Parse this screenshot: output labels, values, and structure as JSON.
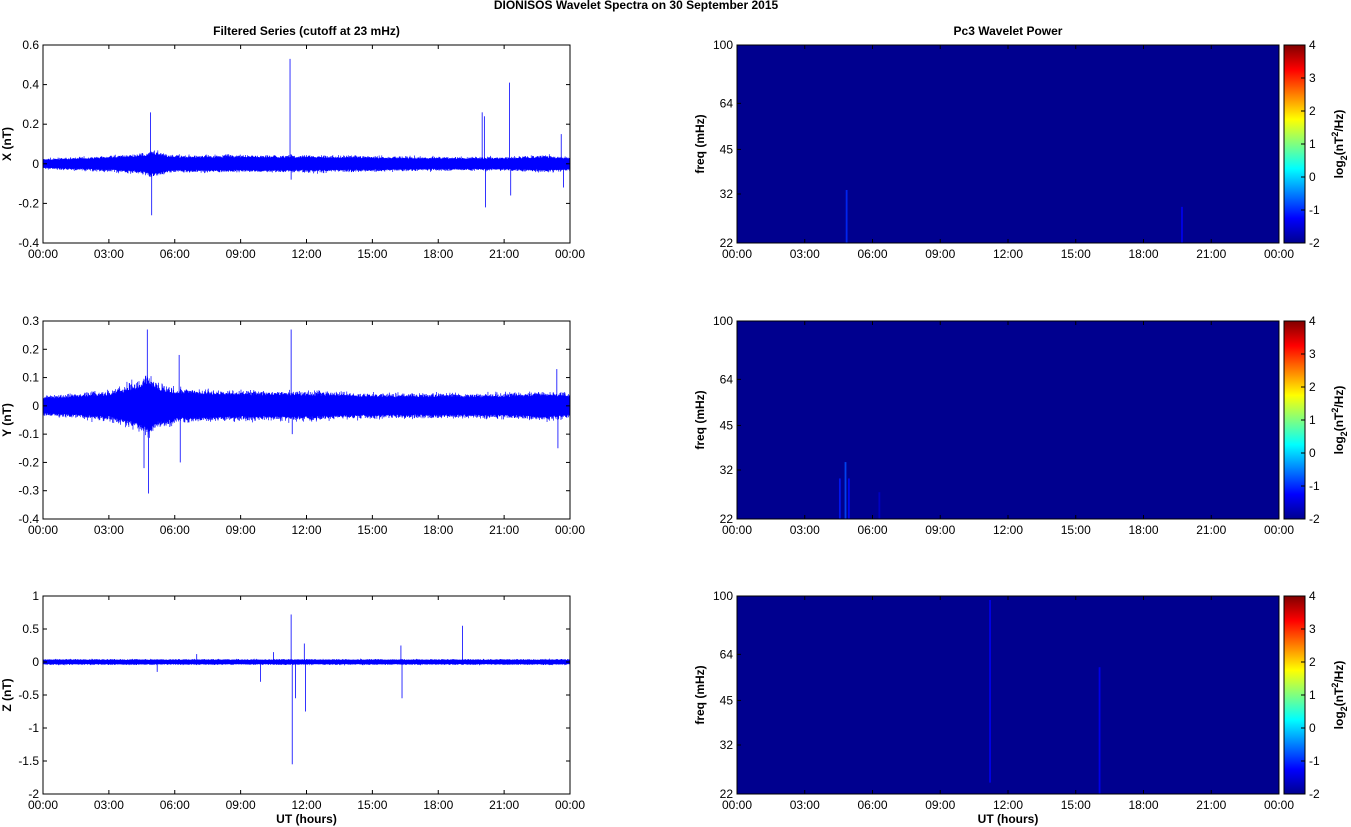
{
  "figure_title": "DIONISOS Wavelet Spectra on 30 September 2015",
  "colors": {
    "trace": "#0000ff",
    "spectrum_background": "#00008f"
  },
  "chart_data": [
    {
      "type": "line",
      "title": "Filtered Series (cutoff at 23 mHz)",
      "xlabel": "",
      "ylabel": "X (nT)",
      "x_tick_labels": [
        "00:00",
        "03:00",
        "06:00",
        "09:00",
        "12:00",
        "15:00",
        "18:00",
        "21:00",
        "00:00"
      ],
      "xlim_hours": [
        0,
        24
      ],
      "ylim": [
        -0.4,
        0.6
      ],
      "y_ticks": [
        -0.4,
        -0.2,
        0,
        0.2,
        0.4,
        0.6
      ],
      "y_tick_labels": [
        "-0.4",
        "-0.2",
        "0",
        "0.2",
        "0.4",
        "0.6"
      ],
      "series": [
        {
          "noise_envelope": {
            "x": [
              0,
              3,
              4.6,
              5,
              5.5,
              6,
              9,
              11,
              12,
              15,
              18,
              21,
              23,
              24
            ],
            "amp": [
              0.03,
              0.045,
              0.06,
              0.08,
              0.06,
              0.05,
              0.05,
              0.05,
              0.05,
              0.045,
              0.04,
              0.04,
              0.05,
              0.04
            ]
          },
          "spikes": [
            {
              "x": 4.9,
              "y": 0.26
            },
            {
              "x": 4.95,
              "y": -0.26
            },
            {
              "x": 11.25,
              "y": 0.53
            },
            {
              "x": 11.3,
              "y": -0.08
            },
            {
              "x": 20.0,
              "y": 0.26
            },
            {
              "x": 20.1,
              "y": 0.24
            },
            {
              "x": 20.15,
              "y": -0.22
            },
            {
              "x": 21.25,
              "y": 0.41
            },
            {
              "x": 21.3,
              "y": -0.16
            },
            {
              "x": 23.6,
              "y": 0.15
            },
            {
              "x": 23.7,
              "y": -0.12
            }
          ]
        }
      ]
    },
    {
      "type": "heatmap",
      "title": "Pc3 Wavelet Power",
      "xlabel": "",
      "ylabel": "freq (mHz)",
      "x_tick_labels": [
        "00:00",
        "03:00",
        "06:00",
        "09:00",
        "12:00",
        "15:00",
        "18:00",
        "21:00",
        "00:00"
      ],
      "xlim_hours": [
        0,
        24
      ],
      "ylim_mhz": [
        22,
        100
      ],
      "log_frequency_axis": true,
      "y_ticks": [
        22,
        32,
        45,
        64,
        100
      ],
      "y_tick_labels": [
        "22",
        "32",
        "45",
        "64",
        "100"
      ],
      "colorbar": {
        "ticks": [
          -2,
          -1,
          0,
          1,
          2,
          3,
          4
        ],
        "tick_labels": [
          "-2",
          "-1",
          "0",
          "1",
          "2",
          "3",
          "4"
        ],
        "label_main": "log",
        "label_sub": "2",
        "label_rest": "(nT",
        "label_sup": "2",
        "label_end": "/Hz)"
      },
      "streaks": [
        {
          "x": 4.85,
          "f_min": 22,
          "f_max": 33,
          "level": -1.0
        },
        {
          "x": 19.7,
          "f_min": 22,
          "f_max": 29,
          "level": -1.3
        }
      ]
    },
    {
      "type": "line",
      "title": "",
      "xlabel": "",
      "ylabel": "Y (nT)",
      "x_tick_labels": [
        "00:00",
        "03:00",
        "06:00",
        "09:00",
        "12:00",
        "15:00",
        "18:00",
        "21:00",
        "00:00"
      ],
      "xlim_hours": [
        0,
        24
      ],
      "ylim": [
        -0.4,
        0.3
      ],
      "y_ticks": [
        -0.4,
        -0.3,
        -0.2,
        -0.1,
        0,
        0.1,
        0.2,
        0.3
      ],
      "y_tick_labels": [
        "-0.4",
        "-0.3",
        "-0.2",
        "-0.1",
        "0",
        "0.1",
        "0.2",
        "0.3"
      ],
      "series": [
        {
          "noise_envelope": {
            "x": [
              0,
              3,
              4.4,
              4.8,
              5.2,
              6,
              9,
              11,
              12,
              15,
              18,
              21,
              23,
              24
            ],
            "amp": [
              0.04,
              0.06,
              0.1,
              0.13,
              0.09,
              0.07,
              0.06,
              0.06,
              0.06,
              0.05,
              0.05,
              0.05,
              0.06,
              0.05
            ]
          },
          "spikes": [
            {
              "x": 4.75,
              "y": 0.27
            },
            {
              "x": 4.8,
              "y": -0.31
            },
            {
              "x": 4.6,
              "y": -0.22
            },
            {
              "x": 6.2,
              "y": 0.18
            },
            {
              "x": 6.25,
              "y": -0.2
            },
            {
              "x": 11.3,
              "y": 0.27
            },
            {
              "x": 11.35,
              "y": -0.1
            },
            {
              "x": 23.4,
              "y": 0.13
            },
            {
              "x": 23.45,
              "y": -0.15
            }
          ]
        }
      ]
    },
    {
      "type": "heatmap",
      "title": "",
      "xlabel": "",
      "ylabel": "freq (mHz)",
      "x_tick_labels": [
        "00:00",
        "03:00",
        "06:00",
        "09:00",
        "12:00",
        "15:00",
        "18:00",
        "21:00",
        "00:00"
      ],
      "xlim_hours": [
        0,
        24
      ],
      "ylim_mhz": [
        22,
        100
      ],
      "log_frequency_axis": true,
      "y_ticks": [
        22,
        32,
        45,
        64,
        100
      ],
      "y_tick_labels": [
        "22",
        "32",
        "45",
        "64",
        "100"
      ],
      "colorbar": {
        "ticks": [
          -2,
          -1,
          0,
          1,
          2,
          3,
          4
        ],
        "tick_labels": [
          "-2",
          "-1",
          "0",
          "1",
          "2",
          "3",
          "4"
        ],
        "label_main": "log",
        "label_sub": "2",
        "label_rest": "(nT",
        "label_sup": "2",
        "label_end": "/Hz)"
      },
      "streaks": [
        {
          "x": 4.55,
          "f_min": 22,
          "f_max": 30,
          "level": -1.1
        },
        {
          "x": 4.8,
          "f_min": 22,
          "f_max": 34,
          "level": -0.8
        },
        {
          "x": 4.95,
          "f_min": 22,
          "f_max": 30,
          "level": -1.2
        },
        {
          "x": 6.3,
          "f_min": 22,
          "f_max": 27,
          "level": -1.6
        }
      ]
    },
    {
      "type": "line",
      "title": "",
      "xlabel": "UT (hours)",
      "ylabel": "Z (nT)",
      "x_tick_labels": [
        "00:00",
        "03:00",
        "06:00",
        "09:00",
        "12:00",
        "15:00",
        "18:00",
        "21:00",
        "00:00"
      ],
      "xlim_hours": [
        0,
        24
      ],
      "ylim": [
        -2,
        1
      ],
      "y_ticks": [
        -2,
        -1.5,
        -1,
        -0.5,
        0,
        0.5,
        1
      ],
      "y_tick_labels": [
        "-2",
        "-1.5",
        "-1",
        "-0.5",
        "0",
        "0.5",
        "1"
      ],
      "series": [
        {
          "noise_envelope": {
            "x": [
              0,
              6,
              12,
              18,
              24
            ],
            "amp": [
              0.05,
              0.05,
              0.05,
              0.05,
              0.05
            ]
          },
          "spikes": [
            {
              "x": 5.2,
              "y": -0.15
            },
            {
              "x": 7.0,
              "y": 0.12
            },
            {
              "x": 9.9,
              "y": -0.3
            },
            {
              "x": 10.5,
              "y": 0.15
            },
            {
              "x": 11.3,
              "y": 0.72
            },
            {
              "x": 11.35,
              "y": -1.55
            },
            {
              "x": 11.5,
              "y": -0.55
            },
            {
              "x": 11.9,
              "y": 0.28
            },
            {
              "x": 11.95,
              "y": -0.75
            },
            {
              "x": 16.3,
              "y": 0.25
            },
            {
              "x": 16.35,
              "y": -0.55
            },
            {
              "x": 19.1,
              "y": 0.55
            }
          ]
        }
      ]
    },
    {
      "type": "heatmap",
      "title": "",
      "xlabel": "UT (hours)",
      "ylabel": "freq (mHz)",
      "x_tick_labels": [
        "00:00",
        "03:00",
        "06:00",
        "09:00",
        "12:00",
        "15:00",
        "18:00",
        "21:00",
        "00:00"
      ],
      "xlim_hours": [
        0,
        24
      ],
      "ylim_mhz": [
        22,
        100
      ],
      "log_frequency_axis": true,
      "y_ticks": [
        22,
        32,
        45,
        64,
        100
      ],
      "y_tick_labels": [
        "22",
        "32",
        "45",
        "64",
        "100"
      ],
      "colorbar": {
        "ticks": [
          -2,
          -1,
          0,
          1,
          2,
          3,
          4
        ],
        "tick_labels": [
          "-2",
          "-1",
          "0",
          "1",
          "2",
          "3",
          "4"
        ],
        "label_main": "log",
        "label_sub": "2",
        "label_rest": "(nT",
        "label_sup": "2",
        "label_end": "/Hz)"
      },
      "streaks": [
        {
          "x": 11.2,
          "f_min": 24,
          "f_max": 97,
          "level": -1.3
        },
        {
          "x": 16.05,
          "f_min": 22,
          "f_max": 58,
          "level": -1.3
        }
      ]
    }
  ]
}
